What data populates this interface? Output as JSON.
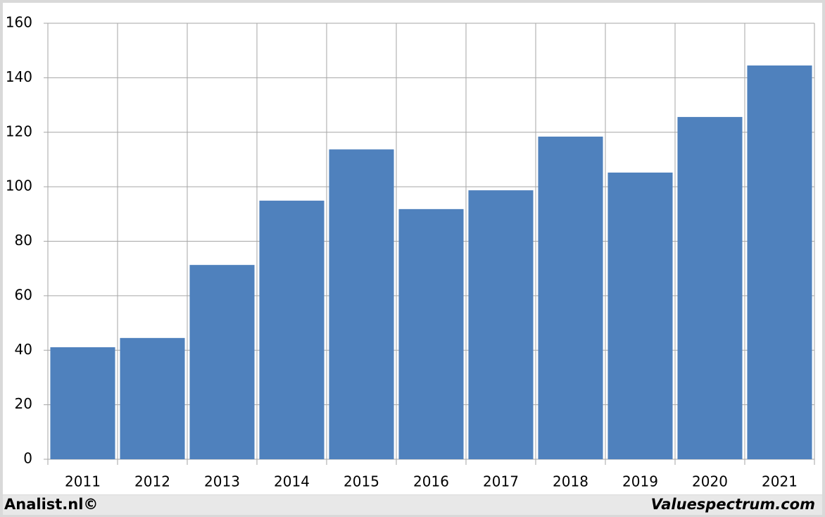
{
  "chart_data": {
    "type": "bar",
    "categories": [
      "2011",
      "2012",
      "2013",
      "2014",
      "2015",
      "2016",
      "2017",
      "2018",
      "2019",
      "2020",
      "2021"
    ],
    "values": [
      41.1,
      44.5,
      71.3,
      94.9,
      113.7,
      91.8,
      98.7,
      118.4,
      105.2,
      125.6,
      144.5
    ],
    "color": "#4f81bd",
    "ylim": [
      0,
      160
    ],
    "yticks": [
      0,
      20,
      40,
      60,
      80,
      100,
      120,
      140,
      160
    ],
    "grid": true
  },
  "footer": {
    "left": "Analist.nl©",
    "right": "Valuespectrum.com"
  }
}
